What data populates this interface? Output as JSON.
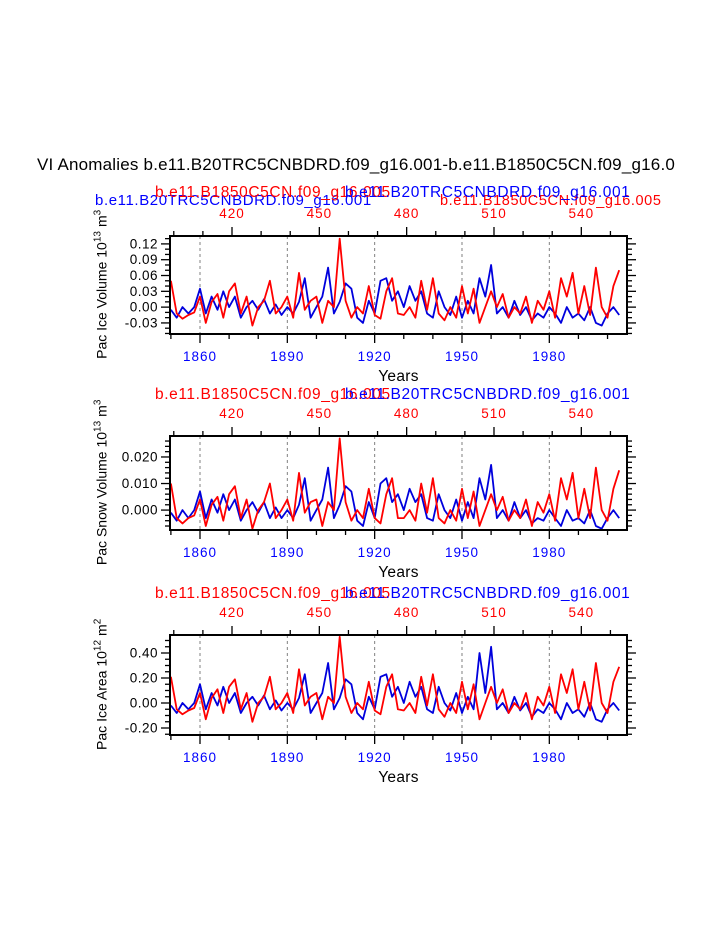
{
  "title": "VI Anomalies b.e11.B20TRC5CNBDRD.f09_g16.001-b.e11.B1850C5CN.f09_g16.0",
  "header": {
    "panel1_left_blue": "b.e11.B20TRC5CNBDRD.f09_g16.001",
    "panel1_right_red": "b.e11.B1850C5CN.f09_g16.005"
  },
  "colors": {
    "red": "#ff0000",
    "blue_text": "#0000ff",
    "blue_line": "#0000dd",
    "red_line": "#ff0000",
    "axis": "#000000",
    "gridline": "#808080"
  },
  "chart_data": [
    {
      "type": "line",
      "key": "pac-ice-volume",
      "title_red": "b.e11.B1850C5CN.f09_g16.005",
      "title_blue": "b.e11.B20TRC5CNBDRD.f09_g16.001",
      "ylabel_parts": {
        "base": "Pac Ice Volume 10",
        "exp": "13",
        "unit": "m",
        "unit_exp": "3"
      },
      "xlabel": "Years",
      "x_bottom_ticks": [
        1860,
        1890,
        1920,
        1950,
        1980
      ],
      "x_top_ticks": [
        420,
        450,
        480,
        510,
        540
      ],
      "ytick_labels": [
        "0.12",
        "0.09",
        "0.06",
        "0.03",
        "0.00",
        "-0.03"
      ],
      "ytick_values": [
        0.12,
        0.09,
        0.06,
        0.03,
        0.0,
        -0.03
      ],
      "yminor_step": 0.01,
      "ylim": [
        -0.051,
        0.135
      ],
      "x_start": 1850,
      "x_step": 2,
      "series": [
        {
          "name": "b.e11.B1850C5CN.f09_g16.005",
          "color": "red",
          "values": [
            0.05,
            -0.012,
            -0.022,
            -0.015,
            -0.01,
            0.02,
            -0.03,
            0.01,
            0.025,
            -0.02,
            0.03,
            0.045,
            -0.012,
            0.02,
            -0.035,
            0,
            0.012,
            0.05,
            -0.012,
            0,
            0.02,
            -0.02,
            0.065,
            -0.005,
            0.012,
            0.02,
            -0.03,
            0.012,
            0,
            0.13,
            0.012,
            -0.02,
            0,
            -0.012,
            0.04,
            -0.015,
            -0.022,
            0.03,
            0.055,
            -0.012,
            -0.015,
            0,
            -0.02,
            0.05,
            -0.005,
            0.055,
            -0.012,
            -0.025,
            0,
            -0.02,
            0.04,
            -0.012,
            0.035,
            -0.03,
            0,
            0.03,
            0,
            0.025,
            -0.02,
            0,
            -0.012,
            0.02,
            -0.03,
            0.012,
            -0.005,
            0.03,
            -0.02,
            0.055,
            0.02,
            0.065,
            -0.012,
            0.04,
            -0.015,
            0.075,
            0,
            -0.02,
            0.04,
            0.07
          ]
        },
        {
          "name": "b.e11.B20TRC5CNBDRD.f09_g16.001",
          "color": "blue",
          "values": [
            -0.005,
            -0.02,
            0,
            -0.012,
            0,
            0.035,
            -0.012,
            0.02,
            -0.005,
            0.03,
            0,
            0.02,
            -0.02,
            0,
            0.012,
            -0.005,
            0.015,
            -0.012,
            0.005,
            -0.015,
            0,
            -0.012,
            0.01,
            0.055,
            -0.02,
            0,
            0.02,
            0.075,
            -0.012,
            0.01,
            0.045,
            0.035,
            -0.02,
            -0.03,
            0.012,
            -0.012,
            0.05,
            0.055,
            0.012,
            0.03,
            0,
            0.04,
            0.012,
            0.03,
            -0.012,
            -0.02,
            0.03,
            0,
            -0.015,
            0.02,
            -0.02,
            0.012,
            -0.012,
            0.055,
            0.02,
            0.08,
            -0.012,
            0,
            -0.02,
            0.012,
            -0.015,
            0,
            -0.025,
            -0.012,
            -0.02,
            0,
            -0.012,
            -0.03,
            0,
            -0.02,
            -0.012,
            -0.025,
            0,
            -0.03,
            -0.035,
            -0.012,
            0,
            -0.015
          ]
        }
      ]
    },
    {
      "type": "line",
      "key": "pac-snow-volume",
      "title_red": "b.e11.B1850C5CN.f09_g16.005",
      "title_blue": "b.e11.B20TRC5CNBDRD.f09_g16.001",
      "ylabel_parts": {
        "base": "Pac Snow Volume 10",
        "exp": "13",
        "unit": "m",
        "unit_exp": "3"
      },
      "xlabel": "Years",
      "x_bottom_ticks": [
        1860,
        1890,
        1920,
        1950,
        1980
      ],
      "x_top_ticks": [
        420,
        450,
        480,
        510,
        540
      ],
      "ytick_labels": [
        "0.020",
        "0.010",
        "0.000"
      ],
      "ytick_values": [
        0.02,
        0.01,
        0.0
      ],
      "yminor_step": 0.002,
      "ylim": [
        -0.0075,
        0.0279
      ],
      "x_start": 1850,
      "x_step": 2,
      "series": [
        {
          "name": "b.e11.B1850C5CN.f09_g16.005",
          "color": "red",
          "values": [
            0.01,
            -0.003,
            -0.005,
            -0.003,
            -0.002,
            0.004,
            -0.006,
            0.002,
            0.005,
            -0.004,
            0.006,
            0.009,
            -0.003,
            0.004,
            -0.007,
            0,
            0.003,
            0.01,
            -0.003,
            0,
            0.004,
            -0.004,
            0.014,
            -0.001,
            0.003,
            0.004,
            -0.006,
            0.003,
            0,
            0.027,
            0.003,
            -0.004,
            0,
            -0.003,
            0.008,
            -0.003,
            -0.005,
            0.006,
            0.012,
            -0.003,
            -0.003,
            0,
            -0.004,
            0.01,
            -0.001,
            0.012,
            -0.003,
            -0.005,
            0,
            -0.004,
            0.008,
            -0.003,
            0.007,
            -0.006,
            0,
            0.006,
            0,
            0.005,
            -0.004,
            0,
            -0.003,
            0.004,
            -0.006,
            0.003,
            -0.001,
            0.006,
            -0.004,
            0.012,
            0.004,
            0.014,
            -0.003,
            0.008,
            -0.003,
            0.016,
            0,
            -0.004,
            0.008,
            0.015
          ]
        },
        {
          "name": "b.e11.B20TRC5CNBDRD.f09_g16.001",
          "color": "blue",
          "values": [
            -0.001,
            -0.004,
            0,
            -0.003,
            0,
            0.007,
            -0.003,
            0.004,
            -0.001,
            0.006,
            0,
            0.004,
            -0.004,
            0,
            0.003,
            -0.001,
            0.003,
            -0.003,
            0.001,
            -0.003,
            0,
            -0.003,
            0.002,
            0.012,
            -0.004,
            0,
            0.004,
            0.016,
            -0.003,
            0.002,
            0.009,
            0.007,
            -0.004,
            -0.006,
            0.003,
            -0.003,
            0.01,
            0.012,
            0.003,
            0.006,
            0,
            0.008,
            0.003,
            0.006,
            -0.003,
            -0.004,
            0.006,
            0,
            -0.003,
            0.004,
            -0.004,
            0.003,
            -0.003,
            0.012,
            0.004,
            0.017,
            -0.003,
            0,
            -0.004,
            0.003,
            -0.003,
            0,
            -0.005,
            -0.003,
            -0.004,
            0,
            -0.003,
            -0.006,
            0,
            -0.004,
            -0.003,
            -0.005,
            0,
            -0.006,
            -0.007,
            -0.003,
            0,
            -0.003
          ]
        }
      ]
    },
    {
      "type": "line",
      "key": "pac-ice-area",
      "title_red": "b.e11.B1850C5CN.f09_g16.005",
      "title_blue": "b.e11.B20TRC5CNBDRD.f09_g16.001",
      "ylabel_parts": {
        "base": "Pac Ice Area 10",
        "exp": "12",
        "unit": "m",
        "unit_exp": "2"
      },
      "xlabel": "Years",
      "x_bottom_ticks": [
        1860,
        1890,
        1920,
        1950,
        1980
      ],
      "x_top_ticks": [
        420,
        450,
        480,
        510,
        540
      ],
      "ytick_labels": [
        "0.40",
        "0.20",
        "0.00",
        "-0.20"
      ],
      "ytick_values": [
        0.4,
        0.2,
        0.0,
        -0.2
      ],
      "yminor_step": 0.05,
      "ylim": [
        -0.256,
        0.544
      ],
      "x_start": 1850,
      "x_step": 2,
      "series": [
        {
          "name": "b.e11.B1850C5CN.f09_g16.005",
          "color": "red",
          "values": [
            0.21,
            -0.05,
            -0.09,
            -0.06,
            -0.04,
            0.08,
            -0.13,
            0.04,
            0.11,
            -0.08,
            0.13,
            0.19,
            -0.05,
            0.08,
            -0.15,
            0,
            0.05,
            0.21,
            -0.05,
            0,
            0.08,
            -0.08,
            0.27,
            -0.02,
            0.05,
            0.08,
            -0.13,
            0.05,
            0,
            0.53,
            0.05,
            -0.08,
            0,
            -0.05,
            0.17,
            -0.06,
            -0.09,
            0.13,
            0.23,
            -0.05,
            -0.06,
            0,
            -0.08,
            0.21,
            -0.02,
            0.23,
            -0.05,
            -0.11,
            0,
            -0.08,
            0.17,
            -0.05,
            0.15,
            -0.13,
            0,
            0.13,
            0,
            0.11,
            -0.08,
            0,
            -0.05,
            0.08,
            -0.13,
            0.05,
            -0.02,
            0.13,
            -0.08,
            0.23,
            0.08,
            0.27,
            -0.05,
            0.17,
            -0.06,
            0.32,
            0,
            -0.08,
            0.17,
            0.29
          ]
        },
        {
          "name": "b.e11.B20TRC5CNBDRD.f09_g16.001",
          "color": "blue",
          "values": [
            -0.02,
            -0.08,
            0,
            -0.05,
            0,
            0.15,
            -0.05,
            0.08,
            -0.02,
            0.13,
            0,
            0.08,
            -0.08,
            0,
            0.05,
            -0.02,
            0.06,
            -0.05,
            0.02,
            -0.06,
            0,
            -0.05,
            0.04,
            0.23,
            -0.08,
            0,
            0.08,
            0.32,
            -0.05,
            0.04,
            0.19,
            0.15,
            -0.08,
            -0.13,
            0.05,
            -0.05,
            0.21,
            0.23,
            0.05,
            0.13,
            0,
            0.17,
            0.05,
            0.13,
            -0.05,
            -0.08,
            0.13,
            0,
            -0.06,
            0.08,
            -0.08,
            0.05,
            -0.05,
            0.4,
            0.08,
            0.45,
            -0.05,
            0,
            -0.08,
            0.05,
            -0.06,
            0,
            -0.11,
            -0.05,
            -0.08,
            0,
            -0.05,
            -0.13,
            0,
            -0.08,
            -0.05,
            -0.11,
            0,
            -0.13,
            -0.15,
            -0.05,
            0,
            -0.06
          ]
        }
      ]
    }
  ]
}
